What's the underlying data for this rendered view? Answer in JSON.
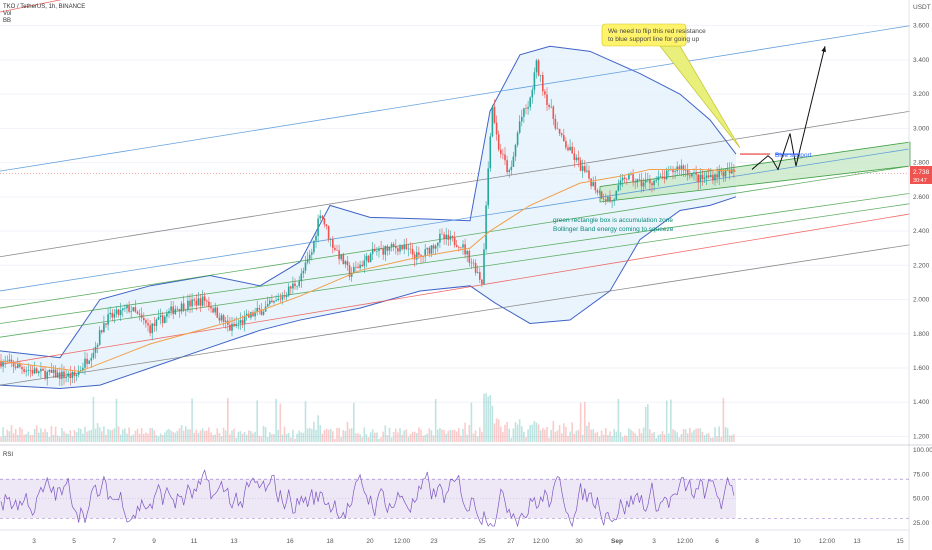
{
  "legend": {
    "symbol": "TKO / TetherUS, 1h, BINANCE",
    "vol": "Vol",
    "bb": "BB",
    "rsi": "RSI"
  },
  "price_axis": {
    "currency": "USDT",
    "current_price": "2.738",
    "countdown": "30:47"
  },
  "annotations": {
    "callout_line1": "We need to flip this red resistance",
    "callout_line2": "to blue support line for going up",
    "blue_support": "Blue support",
    "green_line1": "green rectangle box is accumulation zone",
    "green_line2": "Bollinger Band energy coming to squeeze"
  },
  "colors": {
    "up": "#26a69a",
    "down": "#ef5350",
    "bb_band": "#3f63c7",
    "bb_fill": "#e3f0fb",
    "ma": "#f0a04b",
    "rsi_line": "#7e57c2",
    "rsi_fill": "#ede7f6",
    "zone_fill": "#c8e8c8",
    "zone_border": "#43a047",
    "callout_fill": "#fff36b"
  },
  "chart_data": [
    {
      "type": "candlestick",
      "yaxis_ticks": [
        1.2,
        1.4,
        1.6,
        1.8,
        2.0,
        2.2,
        2.4,
        2.6,
        2.8,
        3.0,
        3.2,
        3.4,
        3.6
      ],
      "yaxis_labels": [
        "1.200",
        "1.400",
        "1.600",
        "1.800",
        "2.000",
        "2.200",
        "2.400",
        "2.600",
        "2.800",
        "3.000",
        "3.200",
        "3.400",
        "3.600"
      ],
      "ylim": [
        1.15,
        3.75
      ],
      "x_labels": [
        "3",
        "5",
        "7",
        "9",
        "11",
        "13",
        "16",
        "18",
        "20",
        "12:00",
        "23",
        "25",
        "27",
        "12:00",
        "30",
        "Sep",
        "3",
        "12:00",
        "6",
        "8",
        "10",
        "12:00",
        "13",
        "15"
      ],
      "price_path": [
        [
          0,
          1.64
        ],
        [
          40,
          1.57
        ],
        [
          75,
          1.55
        ],
        [
          95,
          1.72
        ],
        [
          105,
          1.88
        ],
        [
          130,
          1.95
        ],
        [
          150,
          1.83
        ],
        [
          175,
          1.95
        ],
        [
          205,
          2.0
        ],
        [
          230,
          1.83
        ],
        [
          255,
          1.92
        ],
        [
          275,
          1.98
        ],
        [
          300,
          2.12
        ],
        [
          312,
          2.28
        ],
        [
          320,
          2.52
        ],
        [
          330,
          2.35
        ],
        [
          350,
          2.15
        ],
        [
          375,
          2.28
        ],
        [
          400,
          2.31
        ],
        [
          420,
          2.24
        ],
        [
          440,
          2.36
        ],
        [
          460,
          2.33
        ],
        [
          476,
          2.18
        ],
        [
          482,
          2.1
        ],
        [
          488,
          2.75
        ],
        [
          492,
          3.15
        ],
        [
          498,
          2.9
        ],
        [
          510,
          2.72
        ],
        [
          520,
          3.05
        ],
        [
          530,
          3.15
        ],
        [
          536,
          3.38
        ],
        [
          545,
          3.2
        ],
        [
          560,
          2.95
        ],
        [
          580,
          2.78
        ],
        [
          600,
          2.62
        ],
        [
          612,
          2.57
        ],
        [
          625,
          2.72
        ],
        [
          640,
          2.68
        ],
        [
          660,
          2.7
        ],
        [
          680,
          2.78
        ],
        [
          700,
          2.7
        ],
        [
          720,
          2.74
        ],
        [
          736,
          2.74
        ]
      ],
      "ma_path": [
        [
          0,
          1.64
        ],
        [
          80,
          1.58
        ],
        [
          150,
          1.74
        ],
        [
          230,
          1.87
        ],
        [
          300,
          2.02
        ],
        [
          360,
          2.17
        ],
        [
          420,
          2.25
        ],
        [
          470,
          2.3
        ],
        [
          490,
          2.4
        ],
        [
          530,
          2.55
        ],
        [
          580,
          2.68
        ],
        [
          620,
          2.72
        ],
        [
          650,
          2.76
        ],
        [
          700,
          2.76
        ],
        [
          736,
          2.75
        ]
      ],
      "bb_upper": [
        [
          0,
          1.7
        ],
        [
          60,
          1.66
        ],
        [
          100,
          2.0
        ],
        [
          150,
          2.08
        ],
        [
          210,
          2.14
        ],
        [
          260,
          2.08
        ],
        [
          300,
          2.22
        ],
        [
          330,
          2.55
        ],
        [
          370,
          2.48
        ],
        [
          430,
          2.47
        ],
        [
          470,
          2.46
        ],
        [
          490,
          3.1
        ],
        [
          520,
          3.43
        ],
        [
          550,
          3.48
        ],
        [
          590,
          3.45
        ],
        [
          640,
          3.32
        ],
        [
          680,
          3.2
        ],
        [
          710,
          3.05
        ],
        [
          736,
          2.85
        ]
      ],
      "bb_lower": [
        [
          0,
          1.5
        ],
        [
          60,
          1.48
        ],
        [
          100,
          1.5
        ],
        [
          150,
          1.6
        ],
        [
          210,
          1.72
        ],
        [
          260,
          1.82
        ],
        [
          300,
          1.88
        ],
        [
          360,
          1.95
        ],
        [
          420,
          2.05
        ],
        [
          470,
          2.08
        ],
        [
          495,
          1.98
        ],
        [
          530,
          1.86
        ],
        [
          570,
          1.88
        ],
        [
          610,
          2.05
        ],
        [
          640,
          2.35
        ],
        [
          680,
          2.52
        ],
        [
          710,
          2.55
        ],
        [
          736,
          2.6
        ]
      ],
      "channel_lines": [
        {
          "color": "#ef5350",
          "start": [
            0,
            3.68
          ],
          "end": [
            910,
            4.75
          ]
        },
        {
          "color": "#4a90d9",
          "start": [
            0,
            2.75
          ],
          "end": [
            910,
            3.6
          ]
        },
        {
          "color": "#777777",
          "start": [
            0,
            2.25
          ],
          "end": [
            910,
            3.1
          ]
        },
        {
          "color": "#4a90d9",
          "start": [
            0,
            2.05
          ],
          "end": [
            910,
            2.88
          ]
        },
        {
          "color": "#43a047",
          "start": [
            0,
            1.95
          ],
          "end": [
            910,
            2.78
          ]
        },
        {
          "color": "#43a047",
          "start": [
            0,
            1.86
          ],
          "end": [
            910,
            2.62
          ]
        },
        {
          "color": "#43a047",
          "start": [
            0,
            1.78
          ],
          "end": [
            910,
            2.56
          ]
        },
        {
          "color": "#ef5350",
          "start": [
            0,
            1.62
          ],
          "end": [
            910,
            2.5
          ]
        },
        {
          "color": "#777777",
          "start": [
            0,
            1.5
          ],
          "end": [
            910,
            2.32
          ]
        }
      ],
      "green_zone": {
        "top_start": [
          600,
          2.66
        ],
        "top_end": [
          910,
          2.92
        ],
        "bottom_start": [
          600,
          2.57
        ],
        "bottom_end": [
          910,
          2.78
        ]
      },
      "projection_path": [
        [
          752,
          2.76
        ],
        [
          768,
          2.84
        ],
        [
          772,
          2.82
        ],
        [
          778,
          2.76
        ],
        [
          790,
          2.97
        ],
        [
          796,
          2.78
        ],
        [
          825,
          3.48
        ]
      ],
      "red_resistance": {
        "x1": 740,
        "x2": 770,
        "y": 2.85
      },
      "blue_support_line": {
        "x1": 775,
        "x2": 800,
        "y": 2.85
      }
    },
    {
      "type": "line",
      "name": "RSI",
      "yaxis_ticks": [
        25,
        50,
        75,
        100
      ],
      "yaxis_labels": [
        "25.00",
        "50.00",
        "75.00",
        "100.00"
      ],
      "ylim": [
        20,
        103
      ],
      "bands": [
        30,
        70
      ]
    }
  ]
}
